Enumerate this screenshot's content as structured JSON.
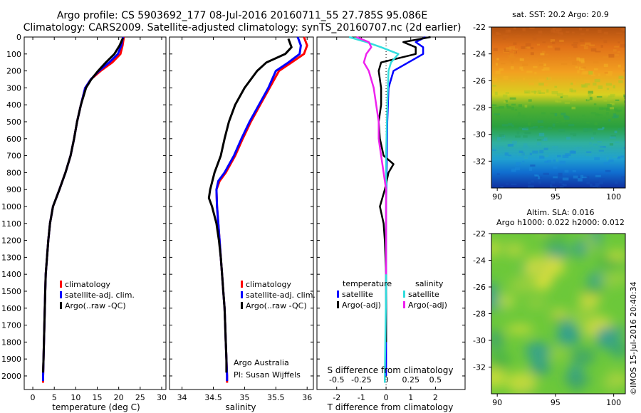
{
  "header": {
    "line1": "Argo profile: CS 5903692_177 08-Jul-2016 20160711_55 27.785S 95.086E",
    "line2": "Climatology: CARS2009. Satellite-adjusted climatology: synTS_20160707.nc (2d earlier)"
  },
  "credit": "©IMOS 15-Jul-2016 20:40:34",
  "colors": {
    "climatology": "#ff0000",
    "satellite_adj": "#0000ff",
    "argo": "#000000",
    "salinity_satellite": "#33dddd",
    "salinity_argo": "#ee22ee"
  },
  "chart_data": [
    {
      "id": "temperature",
      "type": "line",
      "xlabel": "temperature (deg C)",
      "xlim": [
        -2,
        31
      ],
      "ylim": [
        2080,
        0
      ],
      "xticks": [
        0,
        5,
        10,
        15,
        20,
        25,
        30
      ],
      "yticks": [
        0,
        100,
        200,
        300,
        400,
        500,
        600,
        700,
        800,
        900,
        1000,
        1100,
        1200,
        1300,
        1400,
        1500,
        1600,
        1700,
        1800,
        1900,
        2000
      ],
      "legend": [
        "climatology",
        "satellite-adj. clim.",
        "Argo(..raw -QC)"
      ],
      "series": [
        {
          "name": "climatology",
          "color": "#ff0000",
          "points": [
            [
              21.2,
              0
            ],
            [
              20.9,
              50
            ],
            [
              20.4,
              100
            ],
            [
              18.5,
              150
            ],
            [
              15.8,
              200
            ],
            [
              13.5,
              250
            ],
            [
              12.2,
              300
            ],
            [
              11.2,
              400
            ],
            [
              10.3,
              500
            ],
            [
              9.6,
              600
            ],
            [
              8.8,
              700
            ],
            [
              7.6,
              800
            ],
            [
              6.2,
              900
            ],
            [
              4.7,
              1000
            ],
            [
              4.0,
              1100
            ],
            [
              3.6,
              1200
            ],
            [
              3.3,
              1300
            ],
            [
              3.0,
              1400
            ],
            [
              2.9,
              1500
            ],
            [
              2.8,
              1600
            ],
            [
              2.7,
              1700
            ],
            [
              2.6,
              1800
            ],
            [
              2.5,
              1900
            ],
            [
              2.4,
              2000
            ],
            [
              2.4,
              2040
            ]
          ]
        },
        {
          "name": "satellite-adj. clim.",
          "color": "#0000ff",
          "points": [
            [
              21.0,
              0
            ],
            [
              20.6,
              50
            ],
            [
              19.8,
              100
            ],
            [
              17.8,
              150
            ],
            [
              15.4,
              200
            ],
            [
              13.5,
              250
            ],
            [
              12.2,
              300
            ],
            [
              11.2,
              400
            ],
            [
              10.3,
              500
            ],
            [
              9.6,
              600
            ],
            [
              8.8,
              700
            ],
            [
              7.6,
              800
            ],
            [
              6.2,
              900
            ],
            [
              4.7,
              1000
            ],
            [
              4.0,
              1100
            ],
            [
              3.6,
              1200
            ],
            [
              3.3,
              1300
            ],
            [
              3.0,
              1400
            ],
            [
              2.9,
              1500
            ],
            [
              2.8,
              1600
            ],
            [
              2.7,
              1700
            ],
            [
              2.6,
              1800
            ],
            [
              2.5,
              1900
            ],
            [
              2.4,
              2000
            ],
            [
              2.4,
              2030
            ]
          ]
        },
        {
          "name": "Argo(..raw -QC)",
          "color": "#000000",
          "points": [
            [
              21.0,
              5
            ],
            [
              20.2,
              50
            ],
            [
              19.0,
              100
            ],
            [
              17.0,
              150
            ],
            [
              15.2,
              200
            ],
            [
              13.6,
              250
            ],
            [
              12.4,
              300
            ],
            [
              11.2,
              400
            ],
            [
              10.3,
              500
            ],
            [
              9.6,
              600
            ],
            [
              8.8,
              700
            ],
            [
              7.6,
              800
            ],
            [
              6.2,
              900
            ],
            [
              4.7,
              1000
            ],
            [
              4.0,
              1100
            ],
            [
              3.6,
              1200
            ],
            [
              3.3,
              1300
            ],
            [
              3.0,
              1400
            ],
            [
              2.9,
              1500
            ],
            [
              2.8,
              1600
            ],
            [
              2.7,
              1700
            ],
            [
              2.6,
              1800
            ],
            [
              2.5,
              1900
            ],
            [
              2.4,
              1980
            ]
          ]
        }
      ]
    },
    {
      "id": "salinity",
      "type": "line",
      "xlabel": "salinity",
      "xlim": [
        33.8,
        36.1
      ],
      "ylim": [
        2080,
        0
      ],
      "xticks": [
        34,
        34.5,
        35,
        35.5,
        36
      ],
      "legend": [
        "climatology",
        "satellite-adj. clim.",
        "Argo(..raw -QC)"
      ],
      "annotation": [
        "Argo Australia",
        "PI: Susan Wijffels"
      ],
      "series": [
        {
          "name": "climatology",
          "color": "#ff0000",
          "points": [
            [
              35.95,
              0
            ],
            [
              36.0,
              50
            ],
            [
              35.95,
              100
            ],
            [
              35.75,
              150
            ],
            [
              35.55,
              200
            ],
            [
              35.4,
              300
            ],
            [
              35.25,
              400
            ],
            [
              35.1,
              500
            ],
            [
              34.97,
              600
            ],
            [
              34.85,
              700
            ],
            [
              34.7,
              800
            ],
            [
              34.6,
              850
            ],
            [
              34.55,
              900
            ],
            [
              34.56,
              1000
            ],
            [
              34.58,
              1100
            ],
            [
              34.6,
              1200
            ],
            [
              34.62,
              1300
            ],
            [
              34.64,
              1400
            ],
            [
              34.66,
              1500
            ],
            [
              34.68,
              1600
            ],
            [
              34.69,
              1700
            ],
            [
              34.7,
              1800
            ],
            [
              34.71,
              1900
            ],
            [
              34.72,
              2000
            ],
            [
              34.72,
              2040
            ]
          ]
        },
        {
          "name": "satellite-adj. clim.",
          "color": "#0000ff",
          "points": [
            [
              35.85,
              0
            ],
            [
              35.9,
              50
            ],
            [
              35.88,
              100
            ],
            [
              35.7,
              150
            ],
            [
              35.5,
              200
            ],
            [
              35.38,
              300
            ],
            [
              35.23,
              400
            ],
            [
              35.08,
              500
            ],
            [
              34.95,
              600
            ],
            [
              34.83,
              700
            ],
            [
              34.68,
              800
            ],
            [
              34.58,
              850
            ],
            [
              34.55,
              900
            ],
            [
              34.56,
              1000
            ],
            [
              34.58,
              1100
            ],
            [
              34.6,
              1200
            ],
            [
              34.62,
              1300
            ],
            [
              34.64,
              1400
            ],
            [
              34.66,
              1500
            ],
            [
              34.68,
              1600
            ],
            [
              34.69,
              1700
            ],
            [
              34.7,
              1800
            ],
            [
              34.71,
              1900
            ],
            [
              34.72,
              2000
            ],
            [
              34.72,
              2030
            ]
          ]
        },
        {
          "name": "Argo(..raw -QC)",
          "color": "#000000",
          "points": [
            [
              35.7,
              10
            ],
            [
              35.75,
              60
            ],
            [
              35.65,
              100
            ],
            [
              35.35,
              150
            ],
            [
              35.2,
              200
            ],
            [
              35.0,
              300
            ],
            [
              34.85,
              400
            ],
            [
              34.75,
              500
            ],
            [
              34.68,
              600
            ],
            [
              34.62,
              700
            ],
            [
              34.52,
              800
            ],
            [
              34.45,
              900
            ],
            [
              34.43,
              950
            ],
            [
              34.48,
              1000
            ],
            [
              34.55,
              1100
            ],
            [
              34.59,
              1200
            ],
            [
              34.62,
              1300
            ],
            [
              34.64,
              1400
            ],
            [
              34.66,
              1500
            ],
            [
              34.68,
              1600
            ],
            [
              34.69,
              1700
            ],
            [
              34.7,
              1800
            ],
            [
              34.71,
              1900
            ],
            [
              34.71,
              1980
            ]
          ]
        }
      ]
    },
    {
      "id": "difference",
      "type": "line",
      "xlabel": "T difference from climatology",
      "top_label": "S difference from climatology",
      "xlim": [
        -2.8,
        3.2
      ],
      "ylim": [
        2080,
        0
      ],
      "xticks": [
        -2,
        -1,
        0,
        1,
        2
      ],
      "sticks": [
        "-0.5",
        "-0.25",
        "0",
        "0.25",
        "0.5"
      ],
      "legend_groups": [
        {
          "title": "temperature",
          "items": [
            "satellite",
            "Argo(-adj)"
          ]
        },
        {
          "title": "salinity",
          "items": [
            "satellite",
            "Argo(-adj)"
          ]
        }
      ],
      "series": [
        {
          "name": "temperature satellite",
          "color": "#0000ff",
          "points": [
            [
              1.6,
              0
            ],
            [
              1.2,
              30
            ],
            [
              1.5,
              60
            ],
            [
              1.5,
              100
            ],
            [
              0.9,
              150
            ],
            [
              0.3,
              200
            ],
            [
              0.1,
              300
            ],
            [
              0.05,
              500
            ],
            [
              0.02,
              800
            ],
            [
              0.0,
              1000
            ],
            [
              0.0,
              1500
            ],
            [
              0.0,
              2000
            ]
          ]
        },
        {
          "name": "temperature Argo(-adj)",
          "color": "#000000",
          "points": [
            [
              1.8,
              0
            ],
            [
              0.7,
              30
            ],
            [
              1.2,
              60
            ],
            [
              1.2,
              100
            ],
            [
              -0.2,
              150
            ],
            [
              -0.3,
              200
            ],
            [
              -0.2,
              300
            ],
            [
              -0.2,
              400
            ],
            [
              -0.3,
              500
            ],
            [
              -0.25,
              600
            ],
            [
              -0.1,
              700
            ],
            [
              0.3,
              750
            ],
            [
              0.1,
              800
            ],
            [
              -0.05,
              900
            ],
            [
              -0.25,
              1000
            ],
            [
              -0.1,
              1100
            ],
            [
              -0.05,
              1200
            ],
            [
              0.0,
              1400
            ],
            [
              0.0,
              1700
            ],
            [
              0.0,
              1800
            ]
          ]
        },
        {
          "name": "salinity satellite",
          "color": "#33dddd",
          "points": [
            [
              -1.5,
              0
            ],
            [
              -0.8,
              30
            ],
            [
              -0.2,
              60
            ],
            [
              0.5,
              100
            ],
            [
              0.2,
              150
            ],
            [
              0.1,
              200
            ],
            [
              0.05,
              400
            ],
            [
              0.0,
              700
            ],
            [
              0.0,
              1000
            ],
            [
              0.0,
              1500
            ],
            [
              -0.05,
              2000
            ],
            [
              -0.05,
              2040
            ]
          ]
        },
        {
          "name": "salinity Argo(-adj)",
          "color": "#ee22ee",
          "points": [
            [
              -1.2,
              0
            ],
            [
              -0.7,
              30
            ],
            [
              -0.6,
              60
            ],
            [
              -0.8,
              100
            ],
            [
              -0.9,
              150
            ],
            [
              -0.7,
              200
            ],
            [
              -0.5,
              300
            ],
            [
              -0.4,
              400
            ],
            [
              -0.3,
              500
            ],
            [
              -0.3,
              600
            ],
            [
              -0.2,
              700
            ],
            [
              -0.1,
              800
            ],
            [
              0.0,
              900
            ],
            [
              0.0,
              1000
            ],
            [
              0.0,
              1400
            ]
          ]
        }
      ]
    },
    {
      "id": "sst_map",
      "type": "heatmap",
      "title": "sat. SST: 20.2  Argo: 20.9",
      "xlim": [
        89.5,
        101
      ],
      "ylim": [
        -34,
        -22
      ],
      "xticks": [
        90,
        95,
        100
      ],
      "yticks": [
        -22,
        -24,
        -26,
        -28,
        -30,
        -32
      ]
    },
    {
      "id": "sla_map",
      "type": "heatmap",
      "title_lines": [
        "Altim. SLA: 0.016",
        "Argo h1000: 0.022  h2000: 0.012"
      ],
      "xlim": [
        89.5,
        101
      ],
      "ylim": [
        -34,
        -22
      ],
      "xticks": [
        90,
        95,
        100
      ],
      "yticks": [
        -22,
        -24,
        -26,
        -28,
        -30,
        -32
      ]
    }
  ]
}
